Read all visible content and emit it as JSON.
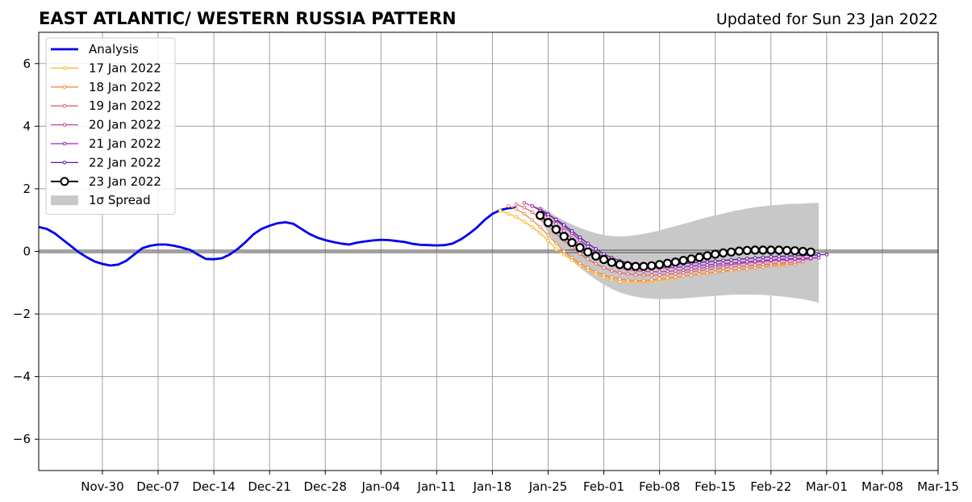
{
  "chart_data": {
    "type": "line",
    "title": "EAST ATLANTIC/ WESTERN RUSSIA PATTERN",
    "subtitle": "Updated for Sun 23 Jan 2022",
    "xlabel": "",
    "ylabel": "",
    "xlim": [
      "2021-11-22",
      "2022-03-15"
    ],
    "ylim": [
      -7,
      7
    ],
    "grid": true,
    "legend_position": "top-left",
    "x_ticks": [
      "Nov-30",
      "Dec-07",
      "Dec-14",
      "Dec-21",
      "Dec-28",
      "Jan-04",
      "Jan-11",
      "Jan-18",
      "Jan-25",
      "Feb-01",
      "Feb-08",
      "Feb-15",
      "Feb-22",
      "Mar-01",
      "Mar-08",
      "Mar-15"
    ],
    "x_tick_dates": [
      "2021-11-30",
      "2021-12-07",
      "2021-12-14",
      "2021-12-21",
      "2021-12-28",
      "2022-01-04",
      "2022-01-11",
      "2022-01-18",
      "2022-01-25",
      "2022-02-01",
      "2022-02-08",
      "2022-02-15",
      "2022-02-22",
      "2022-03-01",
      "2022-03-08",
      "2022-03-15"
    ],
    "y_ticks": [
      6,
      4,
      2,
      0,
      -2,
      -4,
      -6
    ],
    "y_tick_labels": [
      "6",
      "4",
      "2",
      "0",
      "−2",
      "−4",
      "−6"
    ],
    "analysis": {
      "name": "Analysis",
      "color": "#0000ee",
      "dates": [
        "2021-11-22",
        "2021-11-23",
        "2021-11-24",
        "2021-11-25",
        "2021-11-26",
        "2021-11-27",
        "2021-11-28",
        "2021-11-29",
        "2021-11-30",
        "2021-12-01",
        "2021-12-02",
        "2021-12-03",
        "2021-12-04",
        "2021-12-05",
        "2021-12-06",
        "2021-12-07",
        "2021-12-08",
        "2021-12-09",
        "2021-12-10",
        "2021-12-11",
        "2021-12-12",
        "2021-12-13",
        "2021-12-14",
        "2021-12-15",
        "2021-12-16",
        "2021-12-17",
        "2021-12-18",
        "2021-12-19",
        "2021-12-20",
        "2021-12-21",
        "2021-12-22",
        "2021-12-23",
        "2021-12-24",
        "2021-12-25",
        "2021-12-26",
        "2021-12-27",
        "2021-12-28",
        "2021-12-29",
        "2021-12-30",
        "2021-12-31",
        "2022-01-01",
        "2022-01-02",
        "2022-01-03",
        "2022-01-04",
        "2022-01-05",
        "2022-01-06",
        "2022-01-07",
        "2022-01-08",
        "2022-01-09",
        "2022-01-10",
        "2022-01-11",
        "2022-01-12",
        "2022-01-13",
        "2022-01-14",
        "2022-01-15",
        "2022-01-16",
        "2022-01-17",
        "2022-01-18",
        "2022-01-19",
        "2022-01-20",
        "2022-01-21"
      ],
      "values": [
        0.78,
        0.72,
        0.58,
        0.38,
        0.18,
        -0.02,
        -0.18,
        -0.32,
        -0.4,
        -0.45,
        -0.42,
        -0.3,
        -0.1,
        0.1,
        0.18,
        0.22,
        0.22,
        0.18,
        0.12,
        0.05,
        -0.1,
        -0.24,
        -0.25,
        -0.22,
        -0.1,
        0.08,
        0.3,
        0.55,
        0.72,
        0.82,
        0.9,
        0.93,
        0.88,
        0.72,
        0.56,
        0.44,
        0.36,
        0.3,
        0.25,
        0.22,
        0.28,
        0.32,
        0.35,
        0.37,
        0.36,
        0.33,
        0.3,
        0.24,
        0.21,
        0.2,
        0.19,
        0.2,
        0.25,
        0.38,
        0.55,
        0.75,
        1.0,
        1.2,
        1.32,
        1.38,
        1.4
      ]
    },
    "forecasts": [
      {
        "name": "17 Jan 2022",
        "color": "#fbb829",
        "start": "2022-01-19",
        "values": [
          1.3,
          1.2,
          1.1,
          0.95,
          0.78,
          0.58,
          0.35,
          0.08,
          -0.1,
          -0.28,
          -0.45,
          -0.6,
          -0.72,
          -0.82,
          -0.9,
          -0.96,
          -0.98,
          -0.98,
          -0.97,
          -0.95,
          -0.92,
          -0.88,
          -0.84,
          -0.8,
          -0.76,
          -0.72,
          -0.69,
          -0.66,
          -0.63,
          -0.6,
          -0.57,
          -0.54,
          -0.51,
          -0.48,
          -0.45,
          -0.42,
          -0.4
        ]
      },
      {
        "name": "18 Jan 2022",
        "color": "#f58a45",
        "start": "2022-01-20",
        "values": [
          1.45,
          1.35,
          1.2,
          1.0,
          0.78,
          0.52,
          0.25,
          0.0,
          -0.2,
          -0.38,
          -0.52,
          -0.65,
          -0.75,
          -0.83,
          -0.88,
          -0.92,
          -0.93,
          -0.93,
          -0.91,
          -0.88,
          -0.85,
          -0.82,
          -0.79,
          -0.76,
          -0.73,
          -0.7,
          -0.67,
          -0.64,
          -0.61,
          -0.58,
          -0.55,
          -0.52,
          -0.5,
          -0.47,
          -0.45,
          -0.43,
          -0.41
        ]
      },
      {
        "name": "19 Jan 2022",
        "color": "#e06470",
        "start": "2022-01-21",
        "values": [
          1.5,
          1.4,
          1.25,
          1.05,
          0.82,
          0.58,
          0.35,
          0.12,
          -0.08,
          -0.25,
          -0.4,
          -0.52,
          -0.62,
          -0.68,
          -0.72,
          -0.75,
          -0.76,
          -0.76,
          -0.75,
          -0.73,
          -0.71,
          -0.68,
          -0.65,
          -0.62,
          -0.59,
          -0.56,
          -0.53,
          -0.5,
          -0.48,
          -0.46,
          -0.44,
          -0.42,
          -0.4,
          -0.38,
          -0.36,
          -0.35,
          -0.33
        ]
      },
      {
        "name": "20 Jan 2022",
        "color": "#c74795",
        "start": "2022-01-22",
        "values": [
          1.55,
          1.45,
          1.3,
          1.1,
          0.88,
          0.65,
          0.42,
          0.2,
          0.0,
          -0.16,
          -0.3,
          -0.42,
          -0.52,
          -0.58,
          -0.62,
          -0.64,
          -0.65,
          -0.65,
          -0.64,
          -0.62,
          -0.6,
          -0.57,
          -0.54,
          -0.51,
          -0.48,
          -0.45,
          -0.42,
          -0.39,
          -0.36,
          -0.34,
          -0.32,
          -0.3,
          -0.28,
          -0.27,
          -0.26,
          -0.25,
          -0.24
        ]
      },
      {
        "name": "21 Jan 2022",
        "color": "#a020c0",
        "start": "2022-01-23",
        "values": [
          1.45,
          1.35,
          1.2,
          1.0,
          0.8,
          0.58,
          0.36,
          0.15,
          -0.04,
          -0.18,
          -0.3,
          -0.4,
          -0.46,
          -0.5,
          -0.52,
          -0.53,
          -0.53,
          -0.52,
          -0.51,
          -0.49,
          -0.47,
          -0.45,
          -0.43,
          -0.41,
          -0.39,
          -0.37,
          -0.35,
          -0.33,
          -0.31,
          -0.29,
          -0.27,
          -0.25,
          -0.24,
          -0.23,
          -0.22,
          -0.21,
          -0.2
        ]
      },
      {
        "name": "22 Jan 2022",
        "color": "#5e1a9e",
        "start": "2022-01-24",
        "values": [
          1.3,
          1.18,
          1.02,
          0.85,
          0.65,
          0.45,
          0.25,
          0.08,
          -0.08,
          -0.2,
          -0.3,
          -0.36,
          -0.4,
          -0.42,
          -0.43,
          -0.43,
          -0.42,
          -0.41,
          -0.39,
          -0.37,
          -0.35,
          -0.33,
          -0.31,
          -0.29,
          -0.27,
          -0.25,
          -0.23,
          -0.21,
          -0.19,
          -0.17,
          -0.16,
          -0.15,
          -0.14,
          -0.13,
          -0.12,
          -0.11,
          -0.1
        ]
      },
      {
        "name": "23 Jan 2022",
        "color": "#000000",
        "start": "2022-01-24",
        "values": [
          1.15,
          0.92,
          0.7,
          0.48,
          0.28,
          0.12,
          -0.02,
          -0.15,
          -0.26,
          -0.35,
          -0.42,
          -0.46,
          -0.48,
          -0.48,
          -0.46,
          -0.42,
          -0.38,
          -0.34,
          -0.29,
          -0.24,
          -0.19,
          -0.14,
          -0.09,
          -0.05,
          -0.02,
          0.01,
          0.03,
          0.04,
          0.04,
          0.04,
          0.04,
          0.03,
          0.02,
          0.0,
          -0.02
        ]
      }
    ],
    "spread": {
      "name": "1σ Spread",
      "color": "#c8c8c8",
      "start": "2022-01-24",
      "upper": [
        1.45,
        1.28,
        1.12,
        0.98,
        0.86,
        0.75,
        0.66,
        0.58,
        0.52,
        0.49,
        0.48,
        0.49,
        0.52,
        0.56,
        0.61,
        0.67,
        0.74,
        0.81,
        0.88,
        0.95,
        1.02,
        1.09,
        1.15,
        1.21,
        1.27,
        1.32,
        1.37,
        1.41,
        1.44,
        1.47,
        1.49,
        1.51,
        1.52,
        1.53,
        1.54,
        1.55
      ],
      "lower": [
        1.0,
        0.6,
        0.25,
        -0.05,
        -0.3,
        -0.52,
        -0.72,
        -0.9,
        -1.06,
        -1.2,
        -1.31,
        -1.39,
        -1.45,
        -1.49,
        -1.51,
        -1.52,
        -1.52,
        -1.51,
        -1.5,
        -1.48,
        -1.46,
        -1.44,
        -1.42,
        -1.4,
        -1.39,
        -1.38,
        -1.38,
        -1.38,
        -1.39,
        -1.41,
        -1.43,
        -1.46,
        -1.49,
        -1.53,
        -1.58,
        -1.64
      ]
    }
  }
}
